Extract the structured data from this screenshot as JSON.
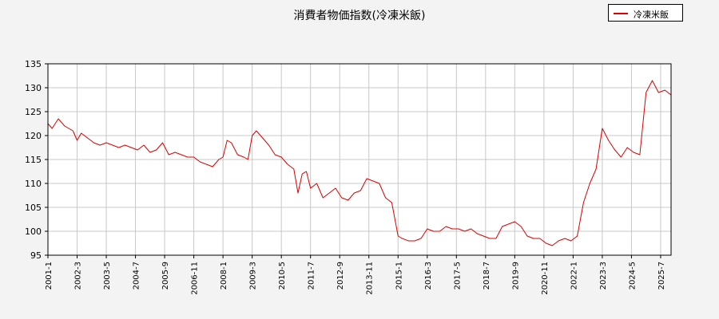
{
  "title": "消費者物価指数(冷凍米飯)",
  "legend_label": "冷凍米飯",
  "colors": {
    "series": "#dd0000",
    "grid": "#c8c8c8",
    "plot_bg": "#ffffff",
    "page_bg": "#f3f3f3"
  },
  "chart_data": {
    "type": "line",
    "title": "消費者物価指数(冷凍米飯)",
    "xlabel": "",
    "ylabel": "",
    "ylim": [
      95,
      135
    ],
    "yticks": [
      "95",
      "100",
      "105",
      "110",
      "115",
      "120",
      "125",
      "130",
      "135"
    ],
    "xlim": [
      "2001-01",
      "2025-12"
    ],
    "xtick_labels": [
      "2001-1",
      "2002-3",
      "2003-5",
      "2004-7",
      "2005-9",
      "2006-11",
      "2008-1",
      "2009-3",
      "2010-5",
      "2011-7",
      "2012-9",
      "2013-11",
      "2015-1",
      "2016-3",
      "2017-5",
      "2018-7",
      "2019-9",
      "2020-11",
      "2022-1",
      "2023-3",
      "2024-5",
      "2025-7"
    ],
    "grid": true,
    "legend_position": "top-right",
    "series": [
      {
        "name": "冷凍米飯",
        "points": [
          [
            "2001-01",
            122.5
          ],
          [
            "2001-03",
            121.5
          ],
          [
            "2001-06",
            123.5
          ],
          [
            "2001-09",
            122.0
          ],
          [
            "2002-01",
            121.0
          ],
          [
            "2002-03",
            119.0
          ],
          [
            "2002-05",
            120.5
          ],
          [
            "2002-08",
            119.5
          ],
          [
            "2002-11",
            118.5
          ],
          [
            "2003-02",
            118.0
          ],
          [
            "2003-05",
            118.5
          ],
          [
            "2003-08",
            118.0
          ],
          [
            "2003-11",
            117.5
          ],
          [
            "2004-02",
            118.0
          ],
          [
            "2004-05",
            117.5
          ],
          [
            "2004-08",
            117.0
          ],
          [
            "2004-11",
            118.0
          ],
          [
            "2005-02",
            116.5
          ],
          [
            "2005-05",
            117.0
          ],
          [
            "2005-08",
            118.5
          ],
          [
            "2005-11",
            116.0
          ],
          [
            "2006-02",
            116.5
          ],
          [
            "2006-05",
            116.0
          ],
          [
            "2006-08",
            115.5
          ],
          [
            "2006-11",
            115.5
          ],
          [
            "2007-02",
            114.5
          ],
          [
            "2007-05",
            114.0
          ],
          [
            "2007-08",
            113.5
          ],
          [
            "2007-11",
            115.0
          ],
          [
            "2008-01",
            115.5
          ],
          [
            "2008-03",
            119.0
          ],
          [
            "2008-05",
            118.5
          ],
          [
            "2008-08",
            116.0
          ],
          [
            "2008-11",
            115.5
          ],
          [
            "2009-01",
            115.0
          ],
          [
            "2009-03",
            120.0
          ],
          [
            "2009-05",
            121.0
          ],
          [
            "2009-08",
            119.5
          ],
          [
            "2009-11",
            118.0
          ],
          [
            "2010-02",
            116.0
          ],
          [
            "2010-05",
            115.5
          ],
          [
            "2010-08",
            114.0
          ],
          [
            "2010-11",
            113.0
          ],
          [
            "2011-01",
            108.0
          ],
          [
            "2011-03",
            112.0
          ],
          [
            "2011-05",
            112.5
          ],
          [
            "2011-07",
            109.0
          ],
          [
            "2011-10",
            110.0
          ],
          [
            "2012-01",
            107.0
          ],
          [
            "2012-04",
            108.0
          ],
          [
            "2012-07",
            109.0
          ],
          [
            "2012-10",
            107.0
          ],
          [
            "2013-01",
            106.5
          ],
          [
            "2013-04",
            108.0
          ],
          [
            "2013-07",
            108.5
          ],
          [
            "2013-10",
            111.0
          ],
          [
            "2014-01",
            110.5
          ],
          [
            "2014-04",
            110.0
          ],
          [
            "2014-07",
            107.0
          ],
          [
            "2014-10",
            106.0
          ],
          [
            "2015-01",
            99.0
          ],
          [
            "2015-03",
            98.5
          ],
          [
            "2015-06",
            98.0
          ],
          [
            "2015-09",
            98.0
          ],
          [
            "2015-12",
            98.5
          ],
          [
            "2016-03",
            100.5
          ],
          [
            "2016-06",
            100.0
          ],
          [
            "2016-09",
            100.0
          ],
          [
            "2016-12",
            101.0
          ],
          [
            "2017-03",
            100.5
          ],
          [
            "2017-06",
            100.5
          ],
          [
            "2017-09",
            100.0
          ],
          [
            "2017-12",
            100.5
          ],
          [
            "2018-03",
            99.5
          ],
          [
            "2018-06",
            99.0
          ],
          [
            "2018-09",
            98.5
          ],
          [
            "2018-12",
            98.5
          ],
          [
            "2019-03",
            101.0
          ],
          [
            "2019-06",
            101.5
          ],
          [
            "2019-09",
            102.0
          ],
          [
            "2019-12",
            101.0
          ],
          [
            "2020-03",
            99.0
          ],
          [
            "2020-06",
            98.5
          ],
          [
            "2020-09",
            98.5
          ],
          [
            "2020-12",
            97.5
          ],
          [
            "2021-03",
            97.0
          ],
          [
            "2021-06",
            98.0
          ],
          [
            "2021-09",
            98.5
          ],
          [
            "2021-12",
            98.0
          ],
          [
            "2022-03",
            99.0
          ],
          [
            "2022-06",
            106.0
          ],
          [
            "2022-09",
            110.0
          ],
          [
            "2022-12",
            113.0
          ],
          [
            "2023-03",
            121.5
          ],
          [
            "2023-06",
            119.0
          ],
          [
            "2023-09",
            117.0
          ],
          [
            "2023-12",
            115.5
          ],
          [
            "2024-03",
            117.5
          ],
          [
            "2024-06",
            116.5
          ],
          [
            "2024-09",
            116.0
          ],
          [
            "2024-12",
            129.0
          ],
          [
            "2025-03",
            131.5
          ],
          [
            "2025-06",
            129.0
          ],
          [
            "2025-09",
            129.5
          ],
          [
            "2025-12",
            128.5
          ]
        ]
      }
    ]
  }
}
